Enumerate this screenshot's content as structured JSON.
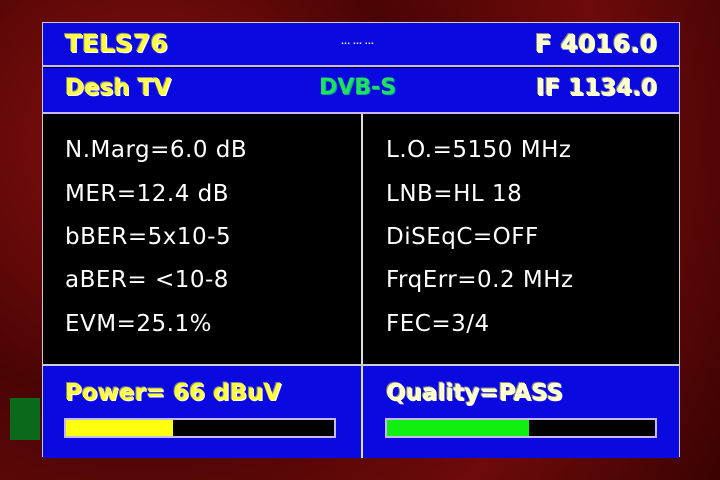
{
  "header": {
    "satellite": "TELS76",
    "center_text": "··· ··· ···",
    "frequency": "F 4016.0",
    "channel": "Desh TV",
    "standard": "DVB-S",
    "if_freq": "IF 1134.0"
  },
  "left": [
    "N.Marg=6.0 dB",
    "MER=12.4 dB",
    "bBER=5x10-5",
    "aBER= <10-8",
    "EVM=25.1%"
  ],
  "right": [
    "L.O.=5150 MHz",
    "LNB=HL 18",
    "DiSEqC=OFF",
    "FrqErr=0.2 MHz",
    "FEC=3/4"
  ],
  "power": {
    "label": "Power= 66 dBuV",
    "level_percent": 40,
    "color": "#ffff10"
  },
  "quality": {
    "label": "Quality=PASS",
    "level_percent": 53,
    "color": "#10f010"
  },
  "colors": {
    "panel": "#0a0ae0",
    "standard": "#20e060"
  }
}
